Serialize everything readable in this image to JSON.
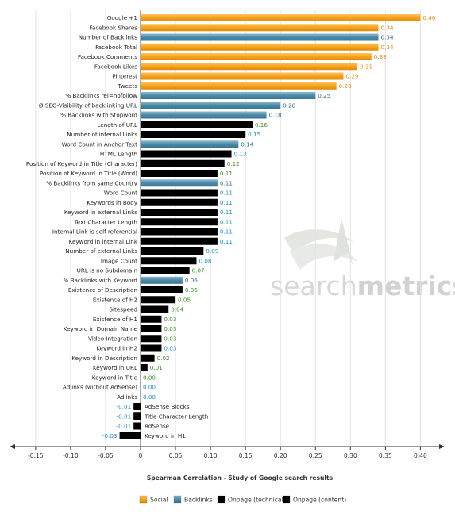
{
  "chart_data": {
    "type": "bar",
    "orientation": "horizontal",
    "title": "",
    "xlabel": "Spearman Correlation - Study of Google search results",
    "xlim": [
      -0.15,
      0.4
    ],
    "xticks": [
      -0.15,
      -0.1,
      -0.05,
      0,
      0.05,
      0.1,
      0.15,
      0.2,
      0.25,
      0.3,
      0.35,
      0.4
    ],
    "xtick_labels": [
      "-0.15",
      "-0.10",
      "-0.05",
      "0",
      "0.05",
      "0.10",
      "0.15",
      "0.20",
      "0.25",
      "0.30",
      "0.35",
      "0.40"
    ],
    "grid": "vertical",
    "legend_position": "bottom",
    "categories_colors": {
      "Social": "#f7a21b",
      "Backlinks": "#4a8aa8",
      "Onpage (technical)": "#4fa834",
      "Onpage (content)": "#2aa7e0"
    },
    "value_label_colors": {
      "Social": "#e8890f",
      "Backlinks": "#2e6b89",
      "Onpage (technical)": "#3c8f26",
      "Onpage (content)": "#1c8fc8"
    },
    "legend": [
      "Social",
      "Backlinks",
      "Onpage (technical)",
      "Onpage (content)"
    ],
    "watermark": [
      "search",
      "metrics"
    ],
    "bars": [
      {
        "label": "Google +1",
        "value": 0.4,
        "value_label": "0.40",
        "category": "Social"
      },
      {
        "label": "Facebook Shares",
        "value": 0.34,
        "value_label": "0.34",
        "category": "Social"
      },
      {
        "label": "Number of Backlinks",
        "value": 0.34,
        "value_label": "0.34",
        "category": "Backlinks"
      },
      {
        "label": "Facebook Total",
        "value": 0.34,
        "value_label": "0.34",
        "category": "Social"
      },
      {
        "label": "Facebook Comments",
        "value": 0.33,
        "value_label": "0.33",
        "category": "Social"
      },
      {
        "label": "Facebook Likes",
        "value": 0.31,
        "value_label": "0.31",
        "category": "Social"
      },
      {
        "label": "Pinterest",
        "value": 0.29,
        "value_label": "0.29",
        "category": "Social"
      },
      {
        "label": "Tweets",
        "value": 0.28,
        "value_label": "0.28",
        "category": "Social"
      },
      {
        "label": "% Backlinks rel=nofollow",
        "value": 0.25,
        "value_label": "0.25",
        "category": "Backlinks"
      },
      {
        "label": "Ø SEO-Visibility of backlinking URL",
        "value": 0.2,
        "value_label": "0.20",
        "category": "Backlinks"
      },
      {
        "label": "% Backlinks with Stopword",
        "value": 0.18,
        "value_label": "0.18",
        "category": "Backlinks"
      },
      {
        "label": "Length of URL",
        "value": 0.16,
        "value_label": "0.16",
        "category": "Onpage (technical)"
      },
      {
        "label": "Number of internal Links",
        "value": 0.15,
        "value_label": "0.15",
        "category": "Onpage (content)"
      },
      {
        "label": "Word Count in Anchor Text",
        "value": 0.14,
        "value_label": "0.14",
        "category": "Backlinks"
      },
      {
        "label": "HTML Length",
        "value": 0.13,
        "value_label": "0.13",
        "category": "Onpage (content)"
      },
      {
        "label": "Position of Keyword in Title (Character)",
        "value": 0.12,
        "value_label": "0.12",
        "category": "Onpage (technical)"
      },
      {
        "label": "Position of Keyword in Title (Word)",
        "value": 0.11,
        "value_label": "0.11",
        "category": "Onpage (technical)"
      },
      {
        "label": "% Backlinks from same Country",
        "value": 0.11,
        "value_label": "0.11",
        "category": "Backlinks"
      },
      {
        "label": "Word Count",
        "value": 0.11,
        "value_label": "0.11",
        "category": "Onpage (content)"
      },
      {
        "label": "Keywords in Body",
        "value": 0.11,
        "value_label": "0.11",
        "category": "Onpage (content)"
      },
      {
        "label": "Keyword in external Links",
        "value": 0.11,
        "value_label": "0.11",
        "category": "Onpage (content)"
      },
      {
        "label": "Text Character Length",
        "value": 0.11,
        "value_label": "0.11",
        "category": "Onpage (content)"
      },
      {
        "label": "Internal Link is self-referential",
        "value": 0.11,
        "value_label": "0.11",
        "category": "Onpage (content)"
      },
      {
        "label": "Keyword in internal Link",
        "value": 0.11,
        "value_label": "0.11",
        "category": "Onpage (content)"
      },
      {
        "label": "Number of external Links",
        "value": 0.09,
        "value_label": "0.09",
        "category": "Onpage (content)"
      },
      {
        "label": "Image Count",
        "value": 0.08,
        "value_label": "0.08",
        "category": "Onpage (content)"
      },
      {
        "label": "URL is no Subdomain",
        "value": 0.07,
        "value_label": "0.07",
        "category": "Onpage (technical)"
      },
      {
        "label": "% Backlinks with Keyword",
        "value": 0.06,
        "value_label": "0.06",
        "category": "Backlinks"
      },
      {
        "label": "Existence of Description",
        "value": 0.06,
        "value_label": "0.06",
        "category": "Onpage (technical)"
      },
      {
        "label": "Existence of H2",
        "value": 0.05,
        "value_label": "0.05",
        "category": "Onpage (technical)"
      },
      {
        "label": "Sitespeed",
        "value": 0.04,
        "value_label": "0.04",
        "category": "Onpage (technical)"
      },
      {
        "label": "Existence of H1",
        "value": 0.03,
        "value_label": "0.03",
        "category": "Onpage (technical)"
      },
      {
        "label": "Keyword in Domain Name",
        "value": 0.03,
        "value_label": "0.03",
        "category": "Onpage (technical)"
      },
      {
        "label": "Video Integration",
        "value": 0.03,
        "value_label": "0.03",
        "category": "Onpage (technical)"
      },
      {
        "label": "Keyword in H2",
        "value": 0.03,
        "value_label": "0.03",
        "category": "Onpage (content)"
      },
      {
        "label": "Keyword in Description",
        "value": 0.02,
        "value_label": "0.02",
        "category": "Onpage (technical)"
      },
      {
        "label": "Keyword in URL",
        "value": 0.01,
        "value_label": "0.01",
        "category": "Onpage (technical)"
      },
      {
        "label": "Keyword in Title",
        "value": 0.0,
        "value_label": "0.00",
        "category": "Onpage (technical)"
      },
      {
        "label": "Adlinks (without AdSense)",
        "value": 0.0,
        "value_label": "0.00",
        "category": "Onpage (content)"
      },
      {
        "label": "Adlinks",
        "value": 0.0,
        "value_label": "0.00",
        "category": "Onpage (content)"
      },
      {
        "label": "AdSense Blocks",
        "value": -0.01,
        "value_label": "-0.01",
        "category": "Onpage (content)"
      },
      {
        "label": "Title Character Length",
        "value": -0.01,
        "value_label": "-0.01",
        "category": "Onpage (content)"
      },
      {
        "label": "AdSense",
        "value": -0.01,
        "value_label": "-0.01",
        "category": "Onpage (content)"
      },
      {
        "label": "Keyword in H1",
        "value": -0.03,
        "value_label": "-0.03",
        "category": "Onpage (content)"
      }
    ]
  }
}
